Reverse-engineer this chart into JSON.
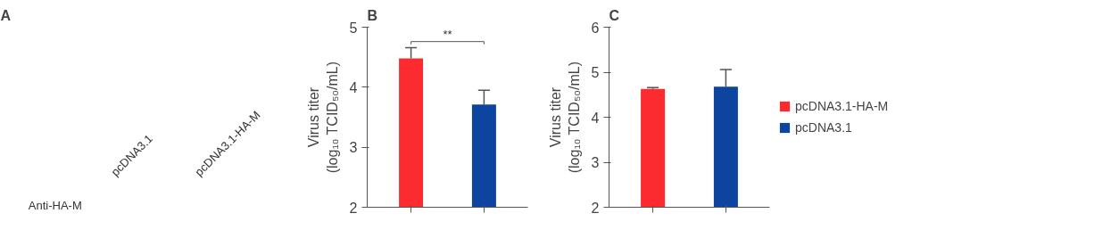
{
  "chart_data": [
    {
      "type": "other",
      "title": "A",
      "categories": [
        "pcDNA3.1",
        "pcDNA3.1-HA-M"
      ],
      "ylabel": "Anti-HA-M"
    },
    {
      "type": "bar",
      "title": "B",
      "ylabel": "Virus titer\n(log₁₀ TCID₅₀/mL)",
      "categories": [
        null,
        null
      ],
      "ylim": [
        2,
        5
      ],
      "yticks": [
        2,
        3,
        4,
        5
      ],
      "grid": false,
      "legend": false,
      "tick_labels": "y",
      "annotations": [
        "**"
      ],
      "series": [
        {
          "color": "#fc2b2f",
          "values": [
            4.48,
            null
          ],
          "errors": [
            [
              4.48,
              4.66
            ],
            null
          ]
        },
        {
          "color": "#0d44a0",
          "values": [
            null,
            3.71
          ],
          "errors": [
            null,
            [
              3.71,
              3.95
            ]
          ]
        }
      ]
    },
    {
      "type": "bar",
      "title": "C",
      "ylabel": "Virus titer\n(log₁₀ TCID₅₀/mL)",
      "categories": [
        null,
        null
      ],
      "ylim": [
        2,
        6
      ],
      "yticks": [
        2,
        3,
        4,
        5,
        6
      ],
      "grid": false,
      "legend": "right",
      "tick_labels": "y",
      "series": [
        {
          "name": "pcDNA3.1-HA-M",
          "color": "#fc2b2f",
          "values": [
            4.63,
            null
          ],
          "errors": [
            [
              4.63,
              4.66
            ],
            null
          ]
        },
        {
          "name": "pcDNA3.1",
          "color": "#0d44a0",
          "values": [
            null,
            4.68
          ],
          "errors": [
            null,
            [
              4.68,
              5.06
            ]
          ]
        }
      ]
    }
  ]
}
